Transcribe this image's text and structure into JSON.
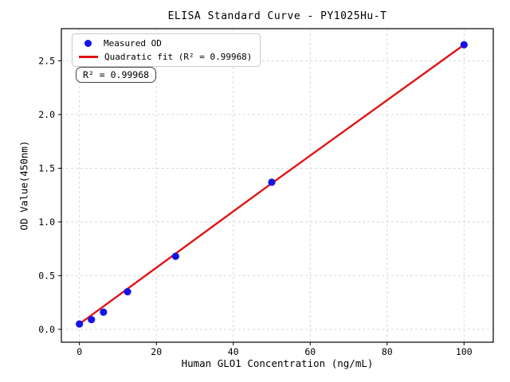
{
  "figure_title": "ELISA Standard Curve - PY1025Hu-T",
  "chart_data": {
    "type": "scatter",
    "title": "ELISA Standard Curve - PY1025Hu-T",
    "xlabel": "Human GLO1 Concentration (ng/mL)",
    "ylabel": "OD Value(450nm)",
    "xlim": [
      -4.7,
      107.6
    ],
    "ylim": [
      -0.12,
      2.8
    ],
    "grid": true,
    "legend_position": "upper left",
    "xticks": [
      "0",
      "20",
      "40",
      "60",
      "80",
      "100"
    ],
    "xtick_values": [
      0,
      20,
      40,
      60,
      80,
      100
    ],
    "yticks": [
      "0.0",
      "0.5",
      "1.0",
      "1.5",
      "2.0",
      "2.5"
    ],
    "ytick_values": [
      0,
      0.5,
      1.0,
      1.5,
      2.0,
      2.5
    ],
    "series": [
      {
        "name": "Measured OD",
        "type": "scatter",
        "color": "#1414e8",
        "x": [
          0,
          3.125,
          6.25,
          12.5,
          25,
          50,
          100
        ],
        "y": [
          0.05,
          0.09,
          0.16,
          0.35,
          0.68,
          1.37,
          2.65
        ]
      },
      {
        "name": "Quadratic fit (R² = 0.99968)",
        "type": "line",
        "color": "#e01414",
        "r_squared": 0.99968,
        "x": [
          0,
          50,
          100
        ],
        "y": [
          0.05,
          1.36,
          2.65
        ]
      }
    ],
    "annotation": "R² = 0.99968"
  },
  "legend": {
    "items": [
      {
        "label": "Measured OD",
        "marker": "dot",
        "color": "#1414e8"
      },
      {
        "label": "Quadratic fit (R² = 0.99968)",
        "marker": "line",
        "color": "#e01414"
      }
    ]
  },
  "annotation_box": {
    "text": "R² = 0.99968"
  }
}
